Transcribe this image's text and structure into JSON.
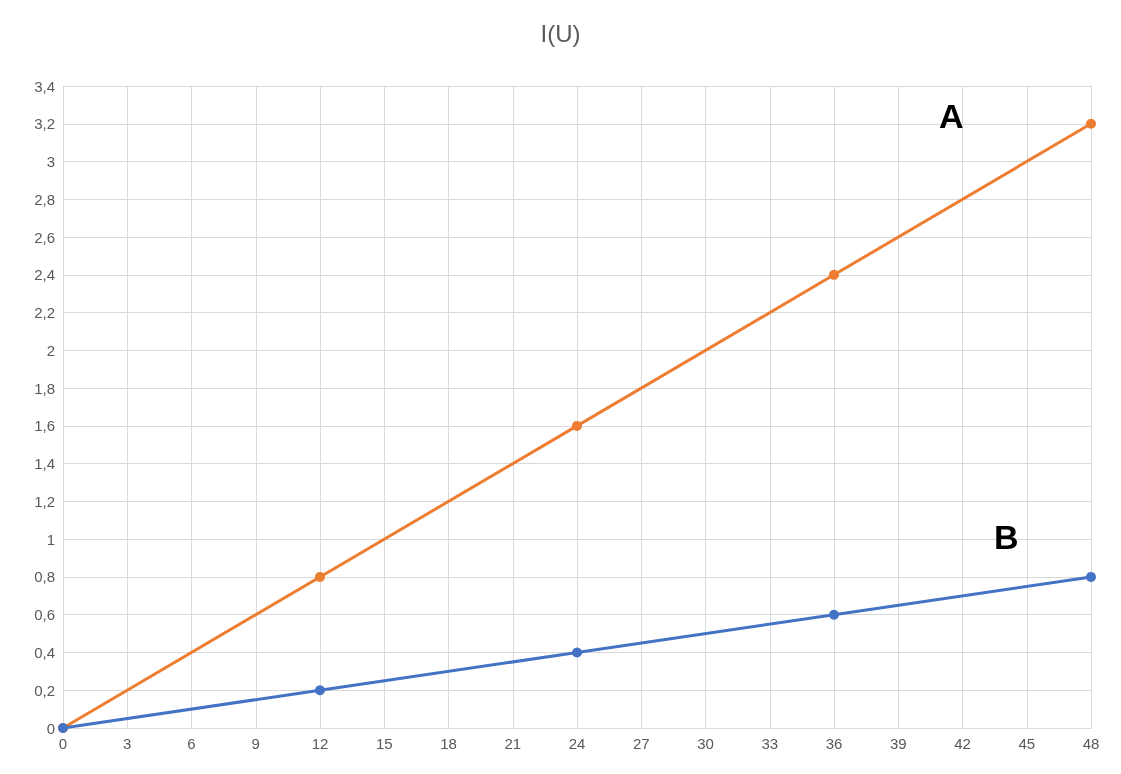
{
  "chart_data": {
    "type": "line",
    "title": "I(U)",
    "x": [
      0,
      12,
      24,
      36,
      48
    ],
    "series": [
      {
        "name": "A",
        "color": "#ed7d31",
        "values": [
          0,
          0.8,
          1.6,
          2.4,
          3.2
        ]
      },
      {
        "name": "B",
        "color": "#4472c4",
        "values": [
          0,
          0.2,
          0.4,
          0.6,
          0.8
        ]
      }
    ],
    "xlim": [
      0,
      48
    ],
    "xticks": [
      0,
      3,
      6,
      9,
      12,
      15,
      18,
      21,
      24,
      27,
      30,
      33,
      36,
      39,
      42,
      45,
      48
    ],
    "ylim": [
      0,
      3.4
    ],
    "yticks": [
      {
        "value": 0,
        "label": "0"
      },
      {
        "value": 0.2,
        "label": "0,2"
      },
      {
        "value": 0.4,
        "label": "0,4"
      },
      {
        "value": 0.6,
        "label": "0,6"
      },
      {
        "value": 0.8,
        "label": "0,8"
      },
      {
        "value": 1,
        "label": "1"
      },
      {
        "value": 1.2,
        "label": "1,2"
      },
      {
        "value": 1.4,
        "label": "1,4"
      },
      {
        "value": 1.6,
        "label": "1,6"
      },
      {
        "value": 1.8,
        "label": "1,8"
      },
      {
        "value": 2,
        "label": "2"
      },
      {
        "value": 2.2,
        "label": "2,2"
      },
      {
        "value": 2.4,
        "label": "2,4"
      },
      {
        "value": 2.6,
        "label": "2,6"
      },
      {
        "value": 2.8,
        "label": "2,8"
      },
      {
        "value": 3,
        "label": "3"
      },
      {
        "value": 3.2,
        "label": "3,2"
      },
      {
        "value": 3.4,
        "label": "3,4"
      }
    ],
    "grid": true,
    "marker": "circle",
    "line_style": "solid",
    "legend": false
  }
}
